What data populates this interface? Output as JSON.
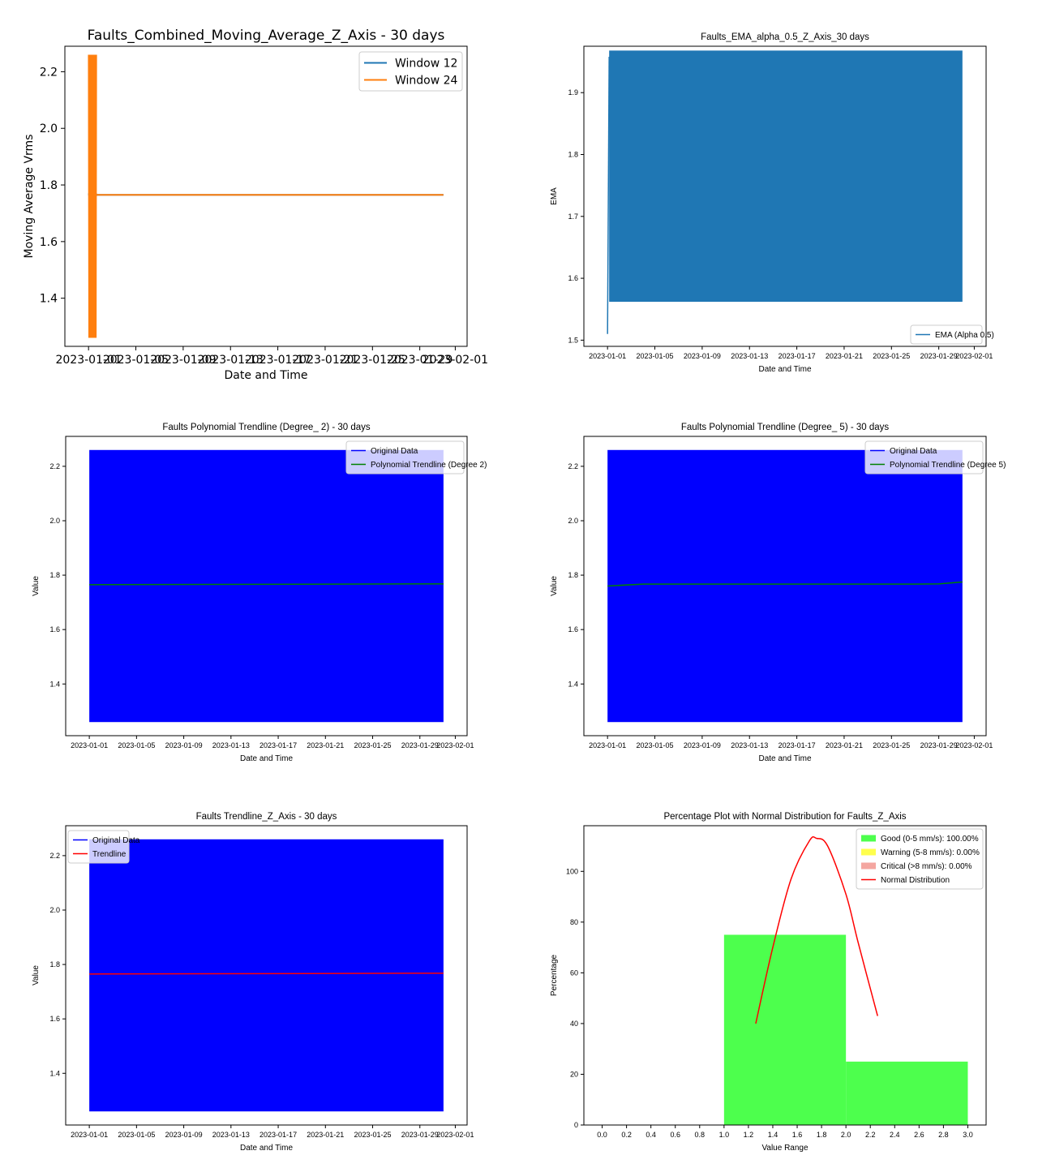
{
  "chart_data": [
    {
      "type": "line",
      "title": "Faults_Combined_Moving_Average_Z_Axis - 30 days",
      "xlabel": "Date and Time",
      "ylabel": "Moving Average Vrms",
      "xlim": [
        "2022-12-30",
        "2023-02-02"
      ],
      "ylim": [
        1.23,
        2.29
      ],
      "x_ticks": [
        "2023-01-01",
        "2023-01-05",
        "2023-01-09",
        "2023-01-13",
        "2023-01-17",
        "2023-01-21",
        "2023-01-25",
        "2023-01-29",
        "2023-02-01"
      ],
      "y_ticks": [
        "1.4",
        "1.6",
        "1.8",
        "2.0",
        "2.2"
      ],
      "legend_position": "top-right",
      "series": [
        {
          "name": "Window 12",
          "color": "#1f77b4",
          "x_range": [
            "2023-01-01",
            "2023-01-31"
          ],
          "oscillation_until": "2023-01-01 16:00",
          "min": 1.76,
          "max": 1.77,
          "settled_value": 1.765
        },
        {
          "name": "Window 24",
          "color": "#ff7f0e",
          "x_range": [
            "2023-01-01",
            "2023-01-31"
          ],
          "oscillation_until": "2023-01-01 16:00",
          "min": 1.26,
          "max": 2.26,
          "settled_value": 1.765
        }
      ]
    },
    {
      "type": "line",
      "title": "Faults_EMA_alpha_0.5_Z_Axis_30 days",
      "xlabel": "Date and Time",
      "ylabel": "EMA",
      "xlim": [
        "2022-12-30",
        "2023-02-02"
      ],
      "ylim": [
        1.49,
        1.975
      ],
      "x_ticks": [
        "2023-01-01",
        "2023-01-05",
        "2023-01-09",
        "2023-01-13",
        "2023-01-17",
        "2023-01-21",
        "2023-01-25",
        "2023-01-29",
        "2023-02-01"
      ],
      "y_ticks": [
        "1.5",
        "1.6",
        "1.7",
        "1.8",
        "1.9"
      ],
      "legend_position": "bottom-right",
      "series": [
        {
          "name": "EMA (Alpha 0.5)",
          "color": "#1f77b4",
          "x_range": [
            "2023-01-01",
            "2023-01-31"
          ],
          "min": 1.562,
          "max": 1.968,
          "start_value": 1.51
        }
      ]
    },
    {
      "type": "line",
      "title": "Faults Polynomial Trendline (Degree_ 2) - 30 days",
      "xlabel": "Date and Time",
      "ylabel": "Value",
      "xlim": [
        "2022-12-30",
        "2023-02-02"
      ],
      "ylim": [
        1.21,
        2.31
      ],
      "x_ticks": [
        "2023-01-01",
        "2023-01-05",
        "2023-01-09",
        "2023-01-13",
        "2023-01-17",
        "2023-01-21",
        "2023-01-25",
        "2023-01-29",
        "2023-02-01"
      ],
      "y_ticks": [
        "1.4",
        "1.6",
        "1.8",
        "2.0",
        "2.2"
      ],
      "legend_position": "top-right",
      "series": [
        {
          "name": "Original Data",
          "color": "#0000ff",
          "x_range": [
            "2023-01-01",
            "2023-01-31"
          ],
          "min": 1.26,
          "max": 2.26
        },
        {
          "name": "Polynomial Trendline (Degree 2)",
          "color": "#008000",
          "x": [
            "2023-01-01",
            "2023-01-31"
          ],
          "values": [
            1.765,
            1.768
          ]
        }
      ]
    },
    {
      "type": "line",
      "title": "Faults Polynomial Trendline (Degree_ 5) - 30 days",
      "xlabel": "Date and Time",
      "ylabel": "Value",
      "xlim": [
        "2022-12-30",
        "2023-02-02"
      ],
      "ylim": [
        1.21,
        2.31
      ],
      "x_ticks": [
        "2023-01-01",
        "2023-01-05",
        "2023-01-09",
        "2023-01-13",
        "2023-01-17",
        "2023-01-21",
        "2023-01-25",
        "2023-01-29",
        "2023-02-01"
      ],
      "y_ticks": [
        "1.4",
        "1.6",
        "1.8",
        "2.0",
        "2.2"
      ],
      "legend_position": "top-right",
      "series": [
        {
          "name": "Original Data",
          "color": "#0000ff",
          "x_range": [
            "2023-01-01",
            "2023-01-31"
          ],
          "min": 1.26,
          "max": 2.26
        },
        {
          "name": "Polynomial Trendline (Degree 5)",
          "color": "#008000",
          "x": [
            "2023-01-01",
            "2023-01-04",
            "2023-01-09",
            "2023-01-16",
            "2023-01-22",
            "2023-01-27",
            "2023-01-29",
            "2023-01-31"
          ],
          "values": [
            1.76,
            1.767,
            1.767,
            1.767,
            1.767,
            1.767,
            1.768,
            1.775
          ]
        }
      ]
    },
    {
      "type": "line",
      "title": "Faults Trendline_Z_Axis - 30 days",
      "xlabel": "Date and Time",
      "ylabel": "Value",
      "xlim": [
        "2022-12-30",
        "2023-02-02"
      ],
      "ylim": [
        1.21,
        2.31
      ],
      "x_ticks": [
        "2023-01-01",
        "2023-01-05",
        "2023-01-09",
        "2023-01-13",
        "2023-01-17",
        "2023-01-21",
        "2023-01-25",
        "2023-01-29",
        "2023-02-01"
      ],
      "y_ticks": [
        "1.4",
        "1.6",
        "1.8",
        "2.0",
        "2.2"
      ],
      "legend_position": "top-left",
      "series": [
        {
          "name": "Original Data",
          "color": "#0000ff",
          "x_range": [
            "2023-01-01",
            "2023-01-31"
          ],
          "min": 1.26,
          "max": 2.26
        },
        {
          "name": "Trendline",
          "color": "#ff0000",
          "x": [
            "2023-01-01",
            "2023-01-31"
          ],
          "values": [
            1.765,
            1.768
          ]
        }
      ]
    },
    {
      "type": "bar",
      "title": "Percentage Plot with Normal Distribution for Faults_Z_Axis",
      "xlabel": "Value Range",
      "ylabel": "Percentage",
      "xlim": [
        -0.15,
        3.15
      ],
      "ylim": [
        0,
        118
      ],
      "x_ticks": [
        "0.0",
        "0.2",
        "0.4",
        "0.6",
        "0.8",
        "1.0",
        "1.2",
        "1.4",
        "1.6",
        "1.8",
        "2.0",
        "2.2",
        "2.4",
        "2.6",
        "2.8",
        "3.0"
      ],
      "y_ticks": [
        "0",
        "20",
        "40",
        "60",
        "80",
        "100"
      ],
      "legend_position": "top-right",
      "bars": [
        {
          "x_start": 0,
          "x_end": 1,
          "value": 0
        },
        {
          "x_start": 1,
          "x_end": 2,
          "value": 75
        },
        {
          "x_start": 2,
          "x_end": 3,
          "value": 25
        }
      ],
      "bar_color": "#4dff4d",
      "series": [
        {
          "name": "Good (0-5 mm/s): 100.00%",
          "color": "#4dff4d"
        },
        {
          "name": "Warning (5-8 mm/s): 0.00%",
          "color": "#ffff4d"
        },
        {
          "name": "Critical (>8 mm/s): 0.00%",
          "color": "#f4a6a0"
        },
        {
          "name": "Normal Distribution",
          "color": "#ff0000",
          "x": [
            1.26,
            1.4,
            1.55,
            1.7,
            1.76,
            1.85,
            2.0,
            2.1,
            2.26
          ],
          "values": [
            40,
            70,
            97,
            112,
            113,
            110,
            91,
            72,
            43
          ]
        }
      ]
    }
  ]
}
